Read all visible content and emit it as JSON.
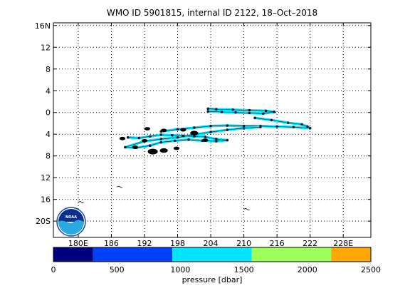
{
  "chart_data": {
    "type": "scatter",
    "title": "WMO ID 5901815, internal ID 2122, 18–Oct–2018",
    "x_axis": {
      "ticks": [
        180,
        186,
        192,
        198,
        204,
        210,
        216,
        222,
        228
      ],
      "tick_labels": [
        "180E",
        "186",
        "192",
        "198",
        "204",
        "210",
        "216",
        "222",
        "228E"
      ],
      "range": [
        175.5,
        233
      ]
    },
    "y_axis": {
      "ticks": [
        16,
        12,
        8,
        4,
        0,
        -4,
        -8,
        -12,
        -16,
        -20
      ],
      "tick_labels": [
        "16N",
        "12",
        "8",
        "4",
        "0",
        "4",
        "8",
        "12",
        "16",
        "20S"
      ],
      "range": [
        -23,
        16.5
      ]
    },
    "grid": true,
    "colorbar": {
      "label": "pressure [dbar]",
      "range": [
        0,
        2500
      ],
      "tick_values": [
        0,
        500,
        1000,
        1500,
        2000,
        2500
      ],
      "tick_labels": [
        "0",
        "500",
        "1000",
        "1500",
        "2000",
        "2500"
      ],
      "bands": [
        {
          "from": 0,
          "to": 312,
          "color": "#000080"
        },
        {
          "from": 312,
          "to": 937,
          "color": "#0040ff"
        },
        {
          "from": 937,
          "to": 1562,
          "color": "#00e5ff"
        },
        {
          "from": 1562,
          "to": 2187,
          "color": "#9eff5a"
        },
        {
          "from": 2187,
          "to": 2500,
          "color": "#ffa800"
        }
      ]
    },
    "tracks": [
      {
        "points": [
          [
            203.5,
            0.2
          ],
          [
            206,
            0.1
          ],
          [
            208.5,
            0.0
          ],
          [
            211,
            -0.1
          ],
          [
            213.5,
            -0.2
          ],
          [
            215.5,
            0.1
          ],
          [
            214,
            0.3
          ],
          [
            211,
            0.4
          ],
          [
            208,
            0.5
          ],
          [
            205,
            0.6
          ],
          [
            203.5,
            0.7
          ]
        ]
      },
      {
        "points": [
          [
            212,
            -1.0
          ],
          [
            215,
            -1.4
          ],
          [
            218,
            -1.9
          ],
          [
            220.5,
            -2.2
          ],
          [
            221.5,
            -2.6
          ],
          [
            222,
            -2.9
          ],
          [
            219,
            -2.7
          ],
          [
            216,
            -2.6
          ],
          [
            213,
            -2.5
          ],
          [
            210,
            -2.5
          ],
          [
            207,
            -2.4
          ],
          [
            204,
            -2.5
          ],
          [
            201,
            -2.8
          ],
          [
            198,
            -3.1
          ],
          [
            195,
            -3.5
          ]
        ]
      },
      {
        "points": [
          [
            189,
            -4.6
          ],
          [
            191,
            -4.7
          ],
          [
            193,
            -4.4
          ],
          [
            195,
            -4.1
          ],
          [
            197,
            -4.2
          ],
          [
            199,
            -4.3
          ],
          [
            201,
            -4.4
          ],
          [
            203,
            -4.5
          ],
          [
            205,
            -4.9
          ],
          [
            207,
            -5.1
          ],
          [
            205,
            -5.3
          ],
          [
            202.5,
            -5.2
          ],
          [
            200,
            -5.0
          ],
          [
            197.5,
            -5.2
          ],
          [
            195,
            -5.5
          ],
          [
            193,
            -6.1
          ],
          [
            190.5,
            -6.5
          ],
          [
            188.5,
            -6.4
          ],
          [
            192,
            -5.3
          ],
          [
            195,
            -4.9
          ],
          [
            198,
            -4.6
          ],
          [
            201,
            -4.1
          ],
          [
            204,
            -3.6
          ],
          [
            207,
            -3.2
          ],
          [
            210,
            -2.9
          ],
          [
            213,
            -2.7
          ]
        ]
      }
    ],
    "black_clusters": [
      {
        "lon": 193.5,
        "lat": -7.2,
        "size": 5
      },
      {
        "lon": 195.5,
        "lat": -7.0,
        "size": 4
      },
      {
        "lon": 197.8,
        "lat": -6.6,
        "size": 3
      },
      {
        "lon": 192.0,
        "lat": -5.2,
        "size": 3
      },
      {
        "lon": 190.3,
        "lat": -6.4,
        "size": 3
      },
      {
        "lon": 192.5,
        "lat": -3.0,
        "size": 3
      },
      {
        "lon": 195.5,
        "lat": -3.3,
        "size": 3
      },
      {
        "lon": 199.0,
        "lat": -3.2,
        "size": 3
      },
      {
        "lon": 201.0,
        "lat": -3.8,
        "size": 4
      },
      {
        "lon": 188.0,
        "lat": -4.8,
        "size": 3
      },
      {
        "lon": 203.0,
        "lat": -5.1,
        "size": 3
      }
    ],
    "islands": [
      {
        "lon": 187.5,
        "lat": -13.7
      },
      {
        "lon": 210.5,
        "lat": -17.8
      },
      {
        "lon": 180.5,
        "lat": -16.5
      }
    ]
  }
}
